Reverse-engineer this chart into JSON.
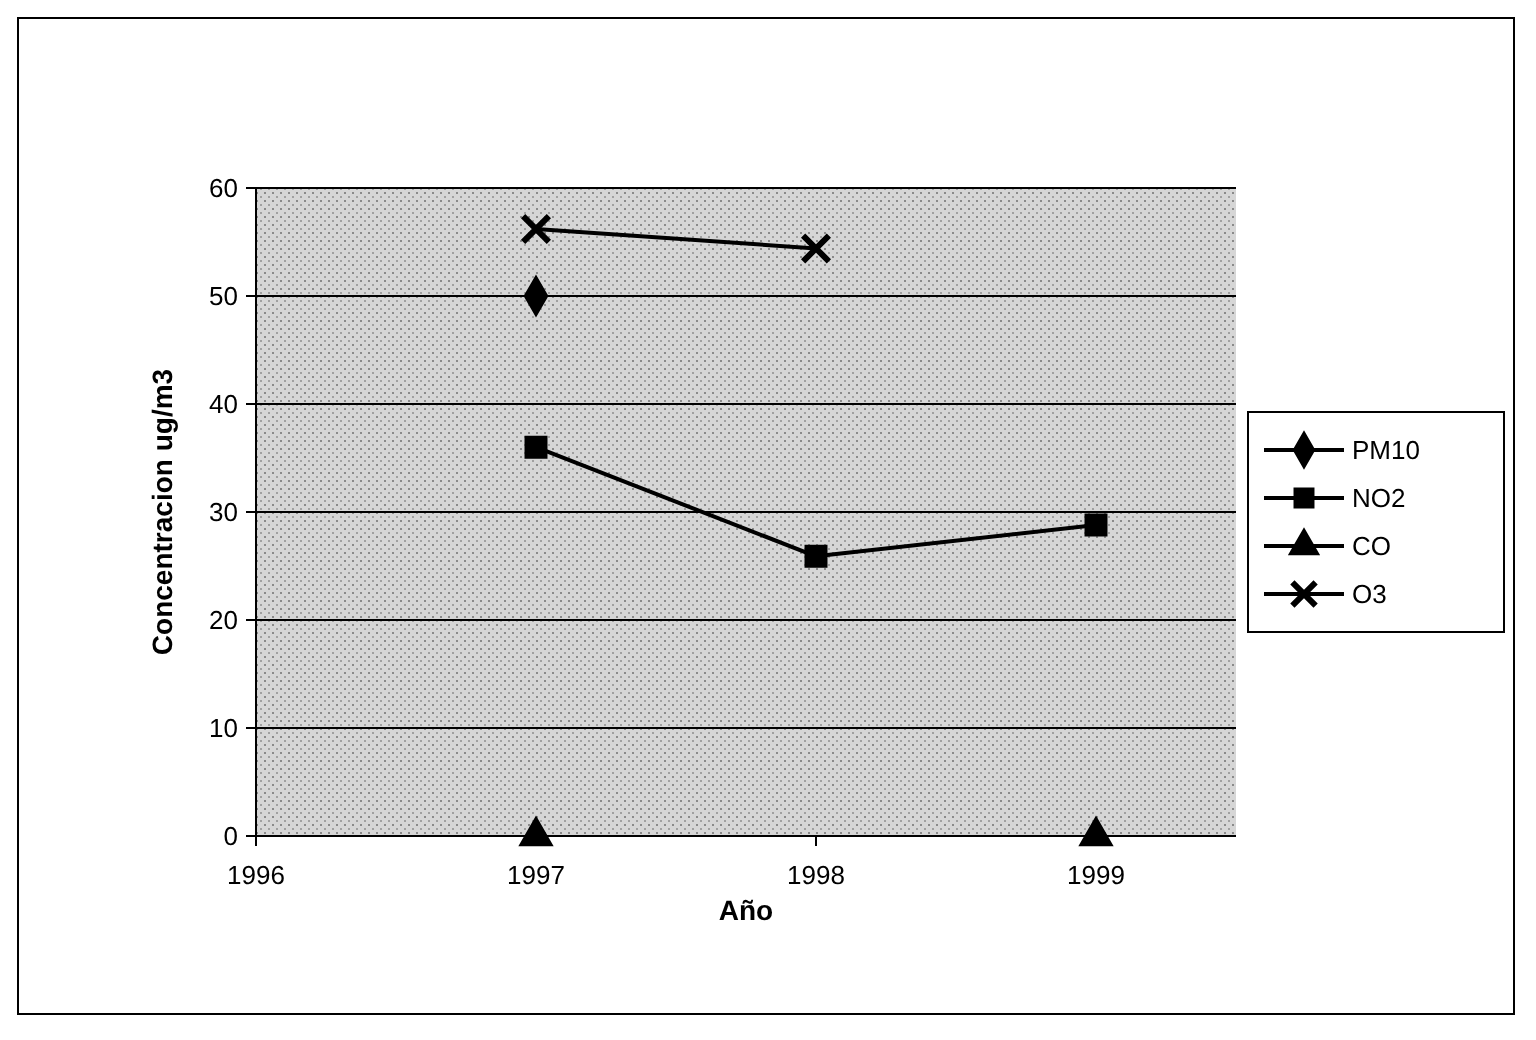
{
  "chart_data": {
    "type": "line",
    "xlabel": "Año",
    "ylabel": "Concentracion ug/m3",
    "x": [
      1997,
      1998,
      1999
    ],
    "xlim": [
      1996,
      1999.5
    ],
    "xticks": [
      1996,
      1997,
      1998,
      1999
    ],
    "ylim": [
      0,
      60
    ],
    "yticks": [
      0,
      10,
      20,
      30,
      40,
      50,
      60
    ],
    "grid": "y",
    "legend": "right",
    "series": [
      {
        "name": "PM10",
        "color": "#000000",
        "marker": "diamond",
        "values": [
          50,
          null,
          null
        ]
      },
      {
        "name": "NO2",
        "color": "#000000",
        "marker": "square",
        "values": [
          36,
          25.9,
          28.8
        ]
      },
      {
        "name": "CO",
        "color": "#000000",
        "marker": "triangle",
        "values": [
          0,
          null,
          0
        ]
      },
      {
        "name": "O3",
        "color": "#000000",
        "marker": "cross",
        "values": [
          56.2,
          54.4,
          null
        ]
      }
    ]
  }
}
